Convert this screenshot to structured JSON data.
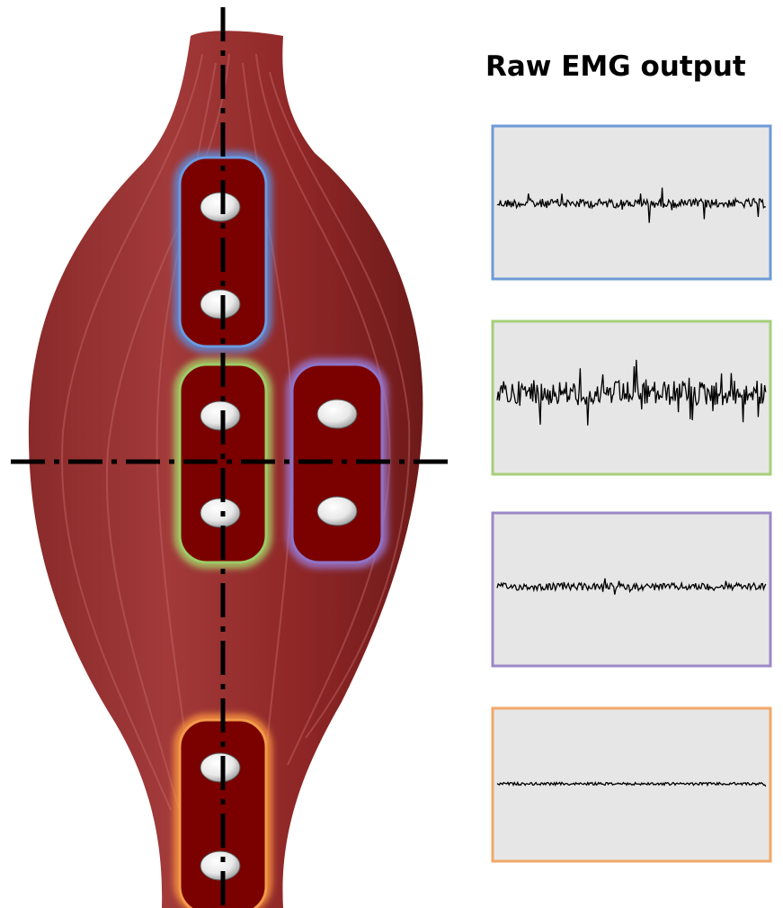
{
  "title": "Raw EMG output"
}
